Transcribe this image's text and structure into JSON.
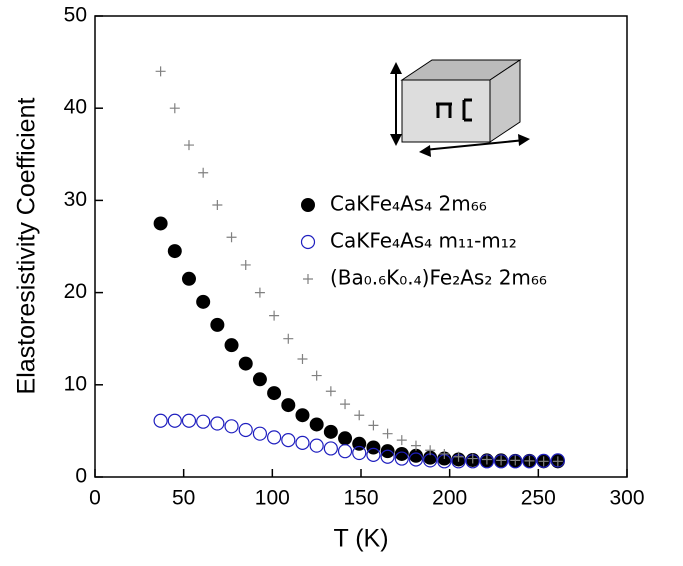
{
  "chart_data": {
    "type": "scatter",
    "x_label": "T (K)",
    "y_label": "Elastoresistivity Coefficient",
    "x": [
      37,
      45,
      53,
      61,
      69,
      77,
      85,
      93,
      101,
      109,
      117,
      125,
      133,
      141,
      149,
      157,
      165,
      173,
      181,
      189,
      197,
      205,
      213,
      221,
      229,
      237,
      245,
      253,
      261
    ],
    "series": [
      {
        "name": "CaKFe₄As₄ 2m₆₆",
        "color": "#000000",
        "marker": "filled-circle",
        "values": [
          27.5,
          24.5,
          21.5,
          19,
          16.5,
          14.3,
          12.3,
          10.6,
          9.1,
          7.8,
          6.7,
          5.7,
          4.9,
          4.2,
          3.6,
          3.2,
          2.8,
          2.5,
          2.3,
          2.1,
          2.0,
          1.9,
          1.85,
          1.8,
          1.8,
          1.75,
          1.75,
          1.7,
          1.7
        ]
      },
      {
        "name": "CaKFe₄As₄ m₁₁-m₁₂",
        "color": "#1f1fbf",
        "marker": "open-circle",
        "values": [
          6.1,
          6.1,
          6.1,
          6.0,
          5.8,
          5.5,
          5.1,
          4.7,
          4.3,
          4.0,
          3.7,
          3.4,
          3.1,
          2.8,
          2.6,
          2.4,
          2.2,
          2.0,
          1.9,
          1.8,
          1.7,
          1.7,
          1.7,
          1.7,
          1.7,
          1.7,
          1.7,
          1.75,
          1.8
        ]
      },
      {
        "name": "(Ba₀.₆K₀.₄)Fe₂As₂  2m₆₆",
        "color": "#808080",
        "marker": "plus",
        "values": [
          44,
          40,
          36,
          33,
          29.5,
          26,
          23,
          20,
          17.5,
          15,
          12.8,
          11,
          9.3,
          7.9,
          6.7,
          5.6,
          4.7,
          4,
          3.4,
          2.9,
          2.5,
          2.2,
          2,
          1.9,
          1.8,
          1.8,
          1.75,
          1.7,
          1.7
        ]
      }
    ],
    "xlim": [
      0,
      300
    ],
    "xticks": [
      0,
      50,
      100,
      150,
      200,
      250,
      300
    ],
    "ylim": [
      0,
      50
    ],
    "yticks": [
      0,
      10,
      20,
      30,
      40,
      50
    ],
    "grid": false
  }
}
